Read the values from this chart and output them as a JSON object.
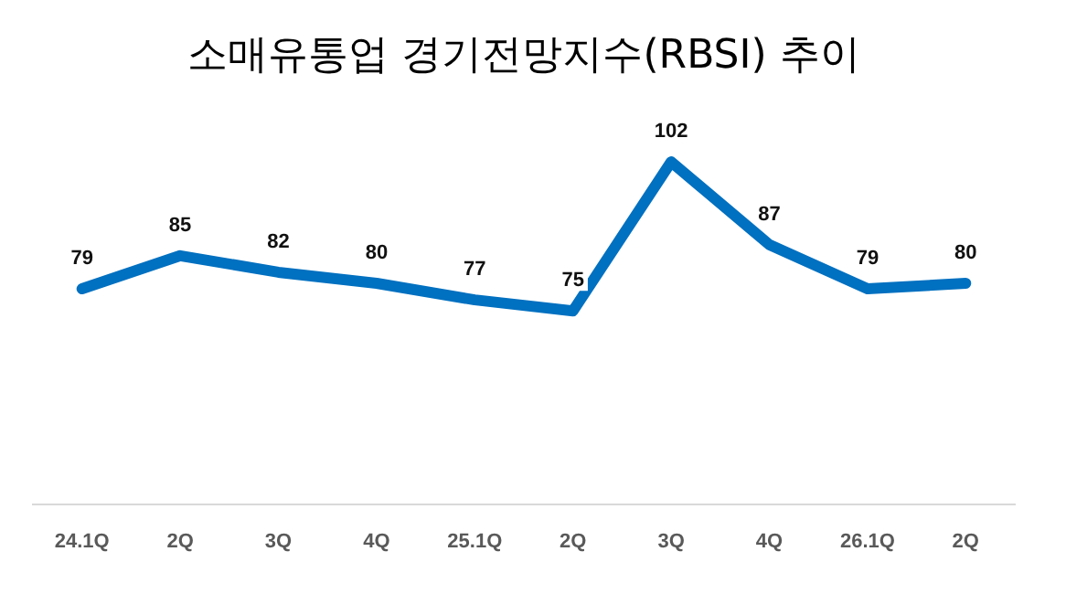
{
  "chart_data": {
    "type": "line",
    "title": "소매유통업 경기전망지수(RBSI) 추이",
    "categories": [
      "24.1Q",
      "2Q",
      "3Q",
      "4Q",
      "25.1Q",
      "2Q",
      "3Q",
      "4Q",
      "26.1Q",
      "2Q"
    ],
    "series": [
      {
        "color": "#0070c0",
        "values": [
          79,
          85,
          82,
          80,
          77,
          75,
          102,
          87,
          79,
          80
        ]
      }
    ],
    "tick_labels": "x",
    "data_labels": true,
    "grid": false,
    "legend": false,
    "marker": "none",
    "line_style": "solid"
  }
}
